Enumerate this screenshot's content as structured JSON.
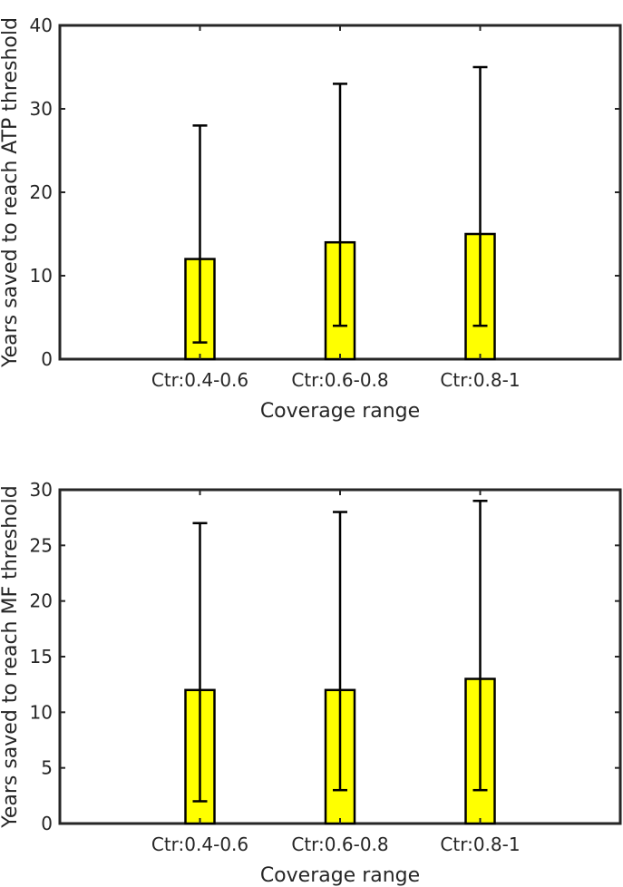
{
  "chart_data": [
    {
      "type": "bar",
      "xlabel": "Coverage range",
      "ylabel": "Years saved to reach ATP threshold",
      "categories": [
        "Ctr:0.4-0.6",
        "Ctr:0.6-0.8",
        "Ctr:0.8-1"
      ],
      "values": [
        12,
        14,
        15
      ],
      "error_low": [
        2,
        4,
        4
      ],
      "error_high": [
        28,
        33,
        35
      ],
      "ylim": [
        0,
        40
      ],
      "yticks": [
        0,
        10,
        20,
        30,
        40
      ],
      "bar_color": "#ffff00",
      "grid": false
    },
    {
      "type": "bar",
      "xlabel": "Coverage range",
      "ylabel": "Years saved to reach MF threshold",
      "categories": [
        "Ctr:0.4-0.6",
        "Ctr:0.6-0.8",
        "Ctr:0.8-1"
      ],
      "values": [
        12,
        12,
        13
      ],
      "error_low": [
        2,
        3,
        3
      ],
      "error_high": [
        27,
        28,
        29
      ],
      "ylim": [
        0,
        30
      ],
      "yticks": [
        0,
        5,
        10,
        15,
        20,
        25,
        30
      ],
      "bar_color": "#ffff00",
      "grid": false
    }
  ]
}
